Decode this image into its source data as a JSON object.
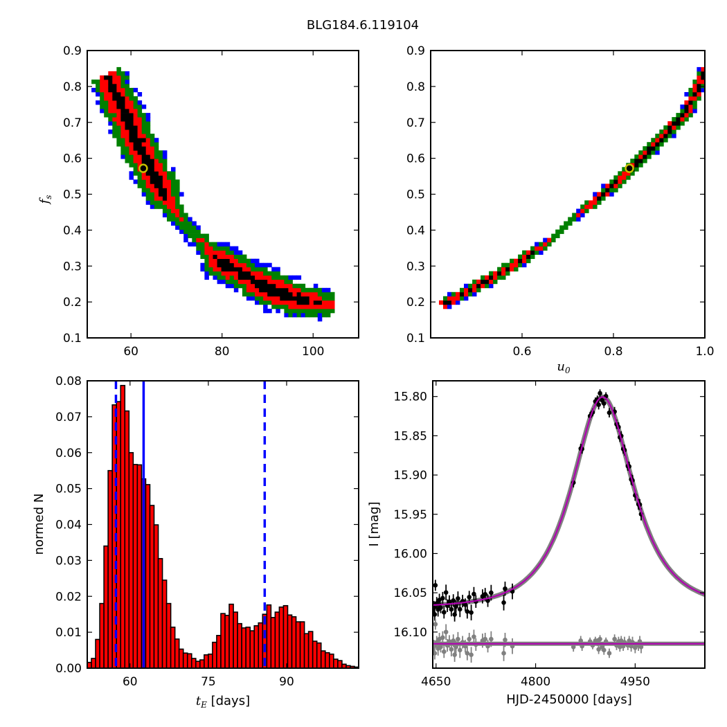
{
  "title": "BLG184.6.119104",
  "colors": {
    "sigma1": "#000000",
    "sigma2": "#ff0000",
    "sigma3": "#008000",
    "sigma4": "#0000ff",
    "best_fit_ring": "#c8c000",
    "hist_bar": "#ff0000",
    "vline": "#0000ff",
    "model": "#b000b0",
    "model_band": "#808080",
    "data": "#000000",
    "residuals": "#808080"
  },
  "chart_data": [
    {
      "type": "heatmap",
      "name": "tE-fs-likelihood",
      "xlabel": {
        "sym": "",
        "sub": ""
      },
      "ylabel": {
        "sym": "f",
        "sub": "s"
      },
      "xlim": [
        50.4,
        110
      ],
      "ylim": [
        0.1,
        0.9
      ],
      "xticks": [
        60,
        80,
        100
      ],
      "xticklabels": [
        "60",
        "80",
        "100"
      ],
      "yticks": [
        0.1,
        0.2,
        0.3,
        0.4,
        0.5,
        0.6,
        0.7,
        0.8,
        0.9
      ],
      "yticklabels": [
        "0.1",
        "0.2",
        "0.3",
        "0.4",
        "0.5",
        "0.6",
        "0.7",
        "0.8",
        "0.9"
      ],
      "levels": [
        "1 sigma (black)",
        "2 sigma (red)",
        "3 sigma (green)",
        "4 sigma (blue)"
      ],
      "cell": [
        0.92,
        0.0116
      ],
      "ridge": [
        [
          54,
          0.83,
          0.9
        ],
        [
          57.5,
          0.74,
          1
        ],
        [
          62,
          0.61,
          1
        ],
        [
          66.5,
          0.5,
          0.95
        ],
        [
          69,
          0.455,
          0.6
        ],
        [
          71.5,
          0.405,
          0.45
        ],
        [
          75,
          0.36,
          0.5
        ],
        [
          79,
          0.31,
          0.95
        ],
        [
          85,
          0.265,
          0.9
        ],
        [
          91,
          0.225,
          1
        ],
        [
          97,
          0.2,
          0.9
        ],
        [
          104,
          0.185,
          0.7
        ]
      ],
      "best_fit": [
        62.7,
        0.572
      ]
    },
    {
      "type": "heatmap",
      "name": "u0-fs-likelihood",
      "xlabel": {
        "sym": "u",
        "sub": "0"
      },
      "ylabel": {
        "sym": "",
        "sub": ""
      },
      "xlim": [
        0.4,
        1.0
      ],
      "ylim": [
        0.1,
        0.9
      ],
      "xticks": [
        0.6,
        0.8,
        1.0
      ],
      "xticklabels": [
        "0.6",
        "0.8",
        "1.0"
      ],
      "yticks": [
        0.1,
        0.2,
        0.3,
        0.4,
        0.5,
        0.6,
        0.7,
        0.8,
        0.9
      ],
      "yticklabels": [
        "0.1",
        "0.2",
        "0.3",
        "0.4",
        "0.5",
        "0.6",
        "0.7",
        "0.8",
        "0.9"
      ],
      "cell": [
        0.0091,
        0.0116
      ],
      "ridge": [
        [
          0.42,
          0.185,
          0.9
        ],
        [
          0.5,
          0.24,
          0.9
        ],
        [
          0.6,
          0.314,
          0.9
        ],
        [
          0.66,
          0.37,
          0.55
        ],
        [
          0.71,
          0.43,
          0.5
        ],
        [
          0.76,
          0.48,
          0.85
        ],
        [
          0.84,
          0.572,
          1
        ],
        [
          0.953,
          0.719,
          1
        ],
        [
          1.0,
          0.845,
          1
        ]
      ],
      "best_fit": [
        0.835,
        0.572
      ]
    },
    {
      "type": "bar",
      "name": "tE-histogram",
      "xlabel": {
        "sym": "t",
        "sub": "E",
        "unit": " [days]"
      },
      "ylabel": "normed N",
      "xlim": [
        51.8,
        103.8
      ],
      "ylim": [
        0,
        0.08
      ],
      "xticks": [
        60,
        75,
        90
      ],
      "xticklabels": [
        "60",
        "75",
        "90"
      ],
      "yticks": [
        0,
        0.01,
        0.02,
        0.03,
        0.04,
        0.05,
        0.06,
        0.07,
        0.08
      ],
      "yticklabels": [
        "0.00",
        "0.01",
        "0.02",
        "0.03",
        "0.04",
        "0.05",
        "0.06",
        "0.07",
        "0.08"
      ],
      "bin_start": 51.8,
      "bin_width": 0.8,
      "values": [
        0.0016,
        0.0027,
        0.008,
        0.018,
        0.034,
        0.055,
        0.0733,
        0.0742,
        0.0787,
        0.0716,
        0.06,
        0.0567,
        0.0566,
        0.0527,
        0.0511,
        0.0453,
        0.0399,
        0.0305,
        0.0245,
        0.018,
        0.0114,
        0.0081,
        0.0053,
        0.0042,
        0.004,
        0.0027,
        0.0019,
        0.0023,
        0.0037,
        0.0039,
        0.0072,
        0.0091,
        0.0152,
        0.0147,
        0.0178,
        0.0156,
        0.0124,
        0.0112,
        0.0114,
        0.0104,
        0.0118,
        0.0126,
        0.015,
        0.0176,
        0.0141,
        0.0156,
        0.017,
        0.0174,
        0.0148,
        0.0143,
        0.0129,
        0.0129,
        0.0096,
        0.0102,
        0.0075,
        0.007,
        0.0048,
        0.0043,
        0.0039,
        0.0025,
        0.0021,
        0.0011,
        0.0007,
        0.0005,
        0.0003
      ],
      "vlines": [
        {
          "x": 62.6,
          "style": "solid"
        },
        {
          "x": 57.3,
          "style": "dashed"
        },
        {
          "x": 85.8,
          "style": "dashed"
        }
      ]
    },
    {
      "type": "line",
      "name": "light-curve",
      "xlabel": "HJD-2450000 [days]",
      "ylabel": "I [mag]",
      "xlim": [
        4645,
        5055
      ],
      "ylim": [
        15.78,
        16.146
      ],
      "y_inverted": true,
      "xticks": [
        4650,
        4800,
        4950
      ],
      "xticklabels": [
        "4650",
        "4800",
        "4950"
      ],
      "yticks": [
        15.8,
        15.85,
        15.9,
        15.95,
        16.0,
        16.05,
        16.1
      ],
      "yticklabels": [
        "15.80",
        "15.85",
        "15.90",
        "15.95",
        "16.00",
        "16.05",
        "16.10"
      ],
      "model": {
        "t0": 4901,
        "tE": 62.7,
        "u0": 0.835,
        "fs": 0.572,
        "I_base": 16.069
      },
      "residual_offset": 16.115,
      "observations": [
        [
          4647,
          0.003,
          0.008
        ],
        [
          4648,
          0.012,
          0.008
        ],
        [
          4649,
          -0.025,
          0.007
        ],
        [
          4651,
          -0.002,
          0.008
        ],
        [
          4653,
          0.006,
          0.009
        ],
        [
          4655,
          -0.006,
          0.008
        ],
        [
          4657,
          0.004,
          0.007
        ],
        [
          4660,
          -0.008,
          0.008
        ],
        [
          4662,
          0.01,
          0.008
        ],
        [
          4665,
          -0.015,
          0.01
        ],
        [
          4667,
          0.002,
          0.008
        ],
        [
          4670,
          -0.003,
          0.008
        ],
        [
          4673,
          0.007,
          0.009
        ],
        [
          4676,
          -0.004,
          0.008
        ],
        [
          4678,
          0.014,
          0.009
        ],
        [
          4680,
          0.004,
          0.008
        ],
        [
          4683,
          -0.006,
          0.009
        ],
        [
          4686,
          0.008,
          0.01
        ],
        [
          4690,
          -0.002,
          0.008
        ],
        [
          4694,
          0.003,
          0.008
        ],
        [
          4697,
          0.012,
          0.009
        ],
        [
          4700,
          -0.006,
          0.008
        ],
        [
          4703,
          0.014,
          0.01
        ],
        [
          4707,
          -0.009,
          0.009
        ],
        [
          4710,
          0.001,
          0.008
        ],
        [
          4720,
          -0.004,
          0.009
        ],
        [
          4724,
          -0.006,
          0.008
        ],
        [
          4728,
          0.003,
          0.008
        ],
        [
          4733,
          -0.006,
          0.01
        ],
        [
          4752,
          0.012,
          0.01
        ],
        [
          4754,
          -0.005,
          0.009
        ],
        [
          4765,
          0.003,
          0.01
        ],
        [
          4857,
          0.004,
          0.006
        ],
        [
          4868,
          -0.004,
          0.006
        ],
        [
          4870,
          0.003,
          0.006
        ],
        [
          4882,
          -0.003,
          0.005
        ],
        [
          4886,
          0.002,
          0.005
        ],
        [
          4890,
          -0.004,
          0.005
        ],
        [
          4893,
          -0.002,
          0.005
        ],
        [
          4895,
          0.007,
          0.006
        ],
        [
          4897,
          -0.006,
          0.005
        ],
        [
          4900,
          0.004,
          0.005
        ],
        [
          4903,
          0.008,
          0.006
        ],
        [
          4906,
          -0.003,
          0.005
        ],
        [
          4911,
          0.012,
          0.006
        ],
        [
          4919,
          -0.006,
          0.006
        ],
        [
          4922,
          0.002,
          0.006
        ],
        [
          4925,
          -0.003,
          0.006
        ],
        [
          4927,
          0.004,
          0.006
        ],
        [
          4929,
          -0.004,
          0.006
        ],
        [
          4932,
          0.003,
          0.006
        ],
        [
          4934,
          -0.002,
          0.007
        ],
        [
          4939,
          0.002,
          0.006
        ],
        [
          4941,
          -0.004,
          0.006
        ],
        [
          4944,
          0.003,
          0.007
        ],
        [
          4946,
          -0.002,
          0.007
        ],
        [
          4950,
          0.005,
          0.007
        ],
        [
          4955,
          0.002,
          0.007
        ],
        [
          4957,
          -0.003,
          0.007
        ],
        [
          4959,
          0.004,
          0.008
        ]
      ]
    }
  ]
}
